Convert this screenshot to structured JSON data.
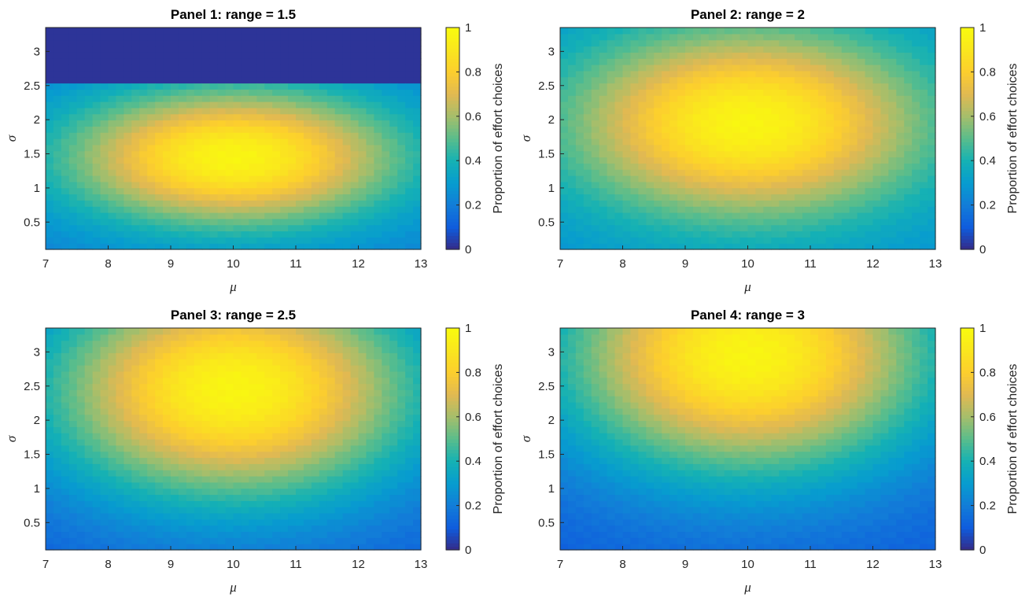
{
  "chart_data": [
    {
      "type": "heatmap",
      "title": "Panel 1: range = 1.5",
      "xlabel": "μ",
      "ylabel": "σ",
      "xlim": [
        7,
        13
      ],
      "ylim": [
        0.1,
        3.35
      ],
      "xticks": [
        "7",
        "8",
        "9",
        "10",
        "11",
        "12",
        "13"
      ],
      "yticks": [
        "0.5",
        "1",
        "1.5",
        "2",
        "2.5",
        "3"
      ],
      "colorbar": {
        "label": "Proportion of effort choices",
        "range": [
          0,
          1
        ],
        "ticks": [
          "0",
          "0.2",
          "0.4",
          "0.6",
          "0.8",
          "1"
        ]
      },
      "surface": {
        "peak_mu": 10,
        "peak_sigma": 1.45,
        "peak_value": 0.97,
        "mu_spread": 3.6,
        "sigma_spread": 1.35,
        "min_value": 0.2,
        "cutoff_sigma": 2.5,
        "cutoff_value": 0.02
      }
    },
    {
      "type": "heatmap",
      "title": "Panel 2: range = 2",
      "xlabel": "μ",
      "ylabel": "σ",
      "xlim": [
        7,
        13
      ],
      "ylim": [
        0.1,
        3.35
      ],
      "xticks": [
        "7",
        "8",
        "9",
        "10",
        "11",
        "12",
        "13"
      ],
      "yticks": [
        "0.5",
        "1",
        "1.5",
        "2",
        "2.5",
        "3"
      ],
      "colorbar": {
        "label": "Proportion of effort choices",
        "range": [
          0,
          1
        ],
        "ticks": [
          "0",
          "0.2",
          "0.4",
          "0.6",
          "0.8",
          "1"
        ]
      },
      "surface": {
        "peak_mu": 10,
        "peak_sigma": 1.95,
        "peak_value": 0.97,
        "mu_spread": 3.8,
        "sigma_spread": 1.85,
        "min_value": 0.25
      }
    },
    {
      "type": "heatmap",
      "title": "Panel 3: range = 2.5",
      "xlabel": "μ",
      "ylabel": "σ",
      "xlim": [
        7,
        13
      ],
      "ylim": [
        0.1,
        3.35
      ],
      "xticks": [
        "7",
        "8",
        "9",
        "10",
        "11",
        "12",
        "13"
      ],
      "yticks": [
        "0.5",
        "1",
        "1.5",
        "2",
        "2.5",
        "3"
      ],
      "colorbar": {
        "label": "Proportion of effort choices",
        "range": [
          0,
          1
        ],
        "ticks": [
          "0",
          "0.2",
          "0.4",
          "0.6",
          "0.8",
          "1"
        ]
      },
      "surface": {
        "peak_mu": 10,
        "peak_sigma": 2.45,
        "peak_value": 0.97,
        "mu_spread": 4.0,
        "sigma_spread": 2.2,
        "min_value": 0.1
      }
    },
    {
      "type": "heatmap",
      "title": "Panel 4: range = 3",
      "xlabel": "μ",
      "ylabel": "σ",
      "xlim": [
        7,
        13
      ],
      "ylim": [
        0.1,
        3.35
      ],
      "xticks": [
        "7",
        "8",
        "9",
        "10",
        "11",
        "12",
        "13"
      ],
      "yticks": [
        "0.5",
        "1",
        "1.5",
        "2",
        "2.5",
        "3"
      ],
      "colorbar": {
        "label": "Proportion of effort choices",
        "range": [
          0,
          1
        ],
        "ticks": [
          "0",
          "0.2",
          "0.4",
          "0.6",
          "0.8",
          "1"
        ]
      },
      "surface": {
        "peak_mu": 10,
        "peak_sigma": 2.95,
        "peak_value": 0.97,
        "mu_spread": 4.0,
        "sigma_spread": 2.35,
        "min_value": 0.1
      }
    }
  ]
}
